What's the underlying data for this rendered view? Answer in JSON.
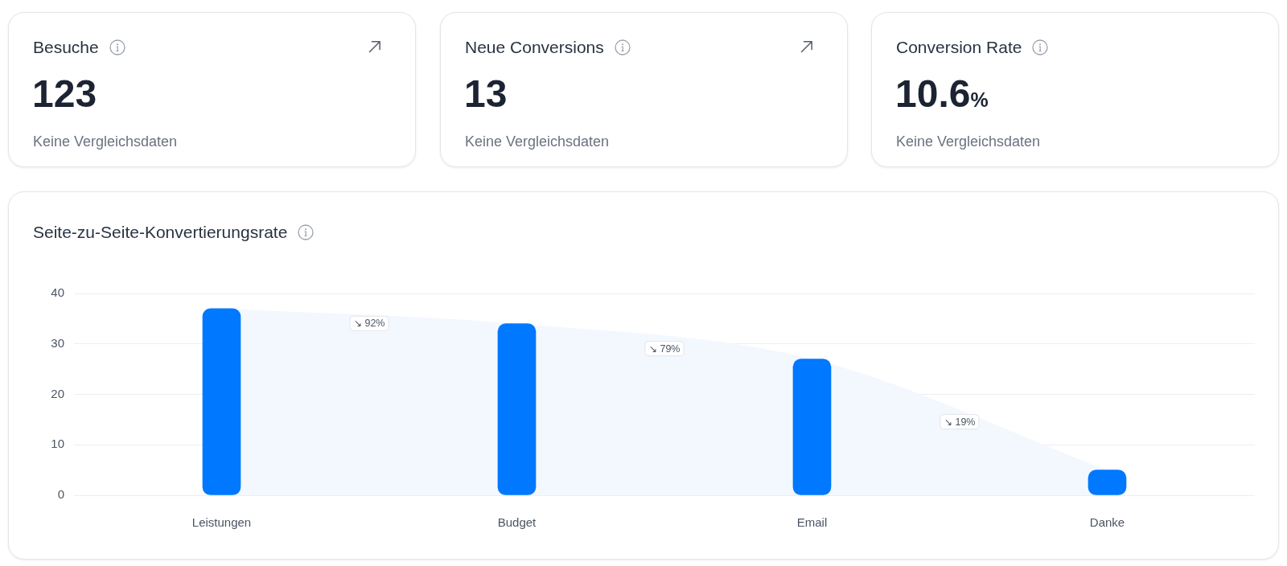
{
  "chart_data": [
    {
      "type": "other",
      "title": "Besuche",
      "annotations": [
        "123",
        "Keine Vergleichsdaten"
      ]
    },
    {
      "type": "other",
      "title": "Neue Conversions",
      "annotations": [
        "13",
        "Keine Vergleichsdaten"
      ]
    },
    {
      "type": "other",
      "title": "Conversion Rate",
      "annotations": [
        "10.6%",
        "Keine Vergleichsdaten"
      ]
    },
    {
      "type": "bar",
      "title": "Seite-zu-Seite-Konvertierungsrate",
      "categories": [
        "Leistungen",
        "Budget",
        "Email",
        "Danke"
      ],
      "series": [
        {
          "type": "area",
          "color": "#f3f7fe",
          "values": [
            37,
            34,
            27,
            5
          ]
        },
        {
          "type": "bar",
          "color": "#0078ff",
          "values": [
            37,
            34,
            27,
            5
          ]
        }
      ],
      "ylim": [
        0,
        40
      ],
      "yticks": [
        0,
        10,
        20,
        30,
        40
      ],
      "grid": "y",
      "annotations": [
        "↘ 92%",
        "↘ 79%",
        "↘ 19%"
      ]
    }
  ]
}
